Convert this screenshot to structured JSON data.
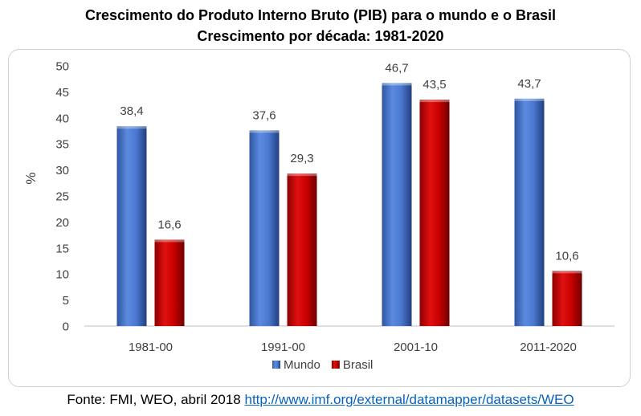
{
  "header": {
    "title": "Crescimento do Produto Interno Bruto (PIB) para o mundo e o Brasil",
    "subtitle": "Crescimento por década: 1981-2020"
  },
  "footer": {
    "source_prefix": "Fonte: FMI, WEO, abril 2018",
    "source_link": "http://www.imf.org/external/datamapper/datasets/WEO"
  },
  "chart_data": {
    "type": "bar",
    "categories": [
      "1981-00",
      "1991-00",
      "2001-10",
      "2011-2020"
    ],
    "series": [
      {
        "name": "Mundo",
        "values": [
          38.4,
          37.6,
          46.7,
          43.7
        ],
        "labels": [
          "38,4",
          "37,6",
          "46,7",
          "43,7"
        ],
        "color": "#4472c4"
      },
      {
        "name": "Brasil",
        "values": [
          16.6,
          29.3,
          43.5,
          10.6
        ],
        "labels": [
          "16,6",
          "29,3",
          "43,5",
          "10,6"
        ],
        "color": "#c00000"
      }
    ],
    "ylabel": "%",
    "ylim": [
      0,
      50
    ],
    "yticks": [
      0,
      5,
      10,
      15,
      20,
      25,
      30,
      35,
      40,
      45,
      50
    ],
    "grid": false,
    "legend_position": "bottom"
  }
}
